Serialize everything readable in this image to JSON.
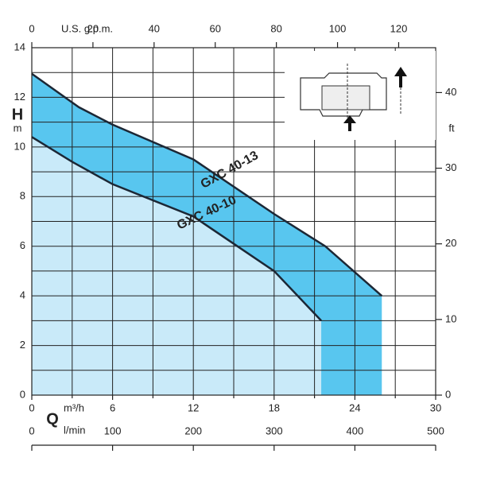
{
  "chart_data": {
    "type": "line",
    "y_label": "H",
    "y_unit": "m",
    "y2_label": "ft",
    "x_label": "Q",
    "x_unit": "m³/h",
    "x2_unit": "l/min",
    "x3_label": "U.S. g.p.m.",
    "xlim": [
      0,
      30
    ],
    "xticks": [
      0,
      6,
      12,
      18,
      24,
      30
    ],
    "xminor": [
      3,
      9,
      15,
      21,
      27
    ],
    "ylim": [
      0,
      14
    ],
    "yticks": [
      0,
      2,
      4,
      6,
      8,
      10,
      12,
      14
    ],
    "yminor": [
      1,
      3,
      5,
      7,
      9,
      11,
      13
    ],
    "y2lim": [
      0,
      45.93
    ],
    "y2ticks": [
      0,
      10,
      20,
      30,
      40
    ],
    "x2lim": [
      0,
      500
    ],
    "x2ticks": [
      0,
      100,
      200,
      300,
      400,
      500
    ],
    "x3lim": [
      0,
      132.1
    ],
    "x3ticks": [
      0,
      20,
      40,
      60,
      80,
      100,
      120
    ],
    "line_color": "#1c2735",
    "grid": true,
    "series": [
      {
        "name": "GXC 40-13",
        "color": "#58c6ef",
        "x": [
          0,
          3.5,
          6,
          12,
          18,
          21.8,
          26
        ],
        "values": [
          12.95,
          11.6,
          10.9,
          9.5,
          7.3,
          6.0,
          4.0
        ]
      },
      {
        "name": "GXC 40-10",
        "color": "#c9eaf9",
        "x": [
          0,
          3,
          6,
          12,
          18,
          21.5
        ],
        "values": [
          10.4,
          9.4,
          8.5,
          7.2,
          5.0,
          3.0
        ]
      }
    ]
  }
}
